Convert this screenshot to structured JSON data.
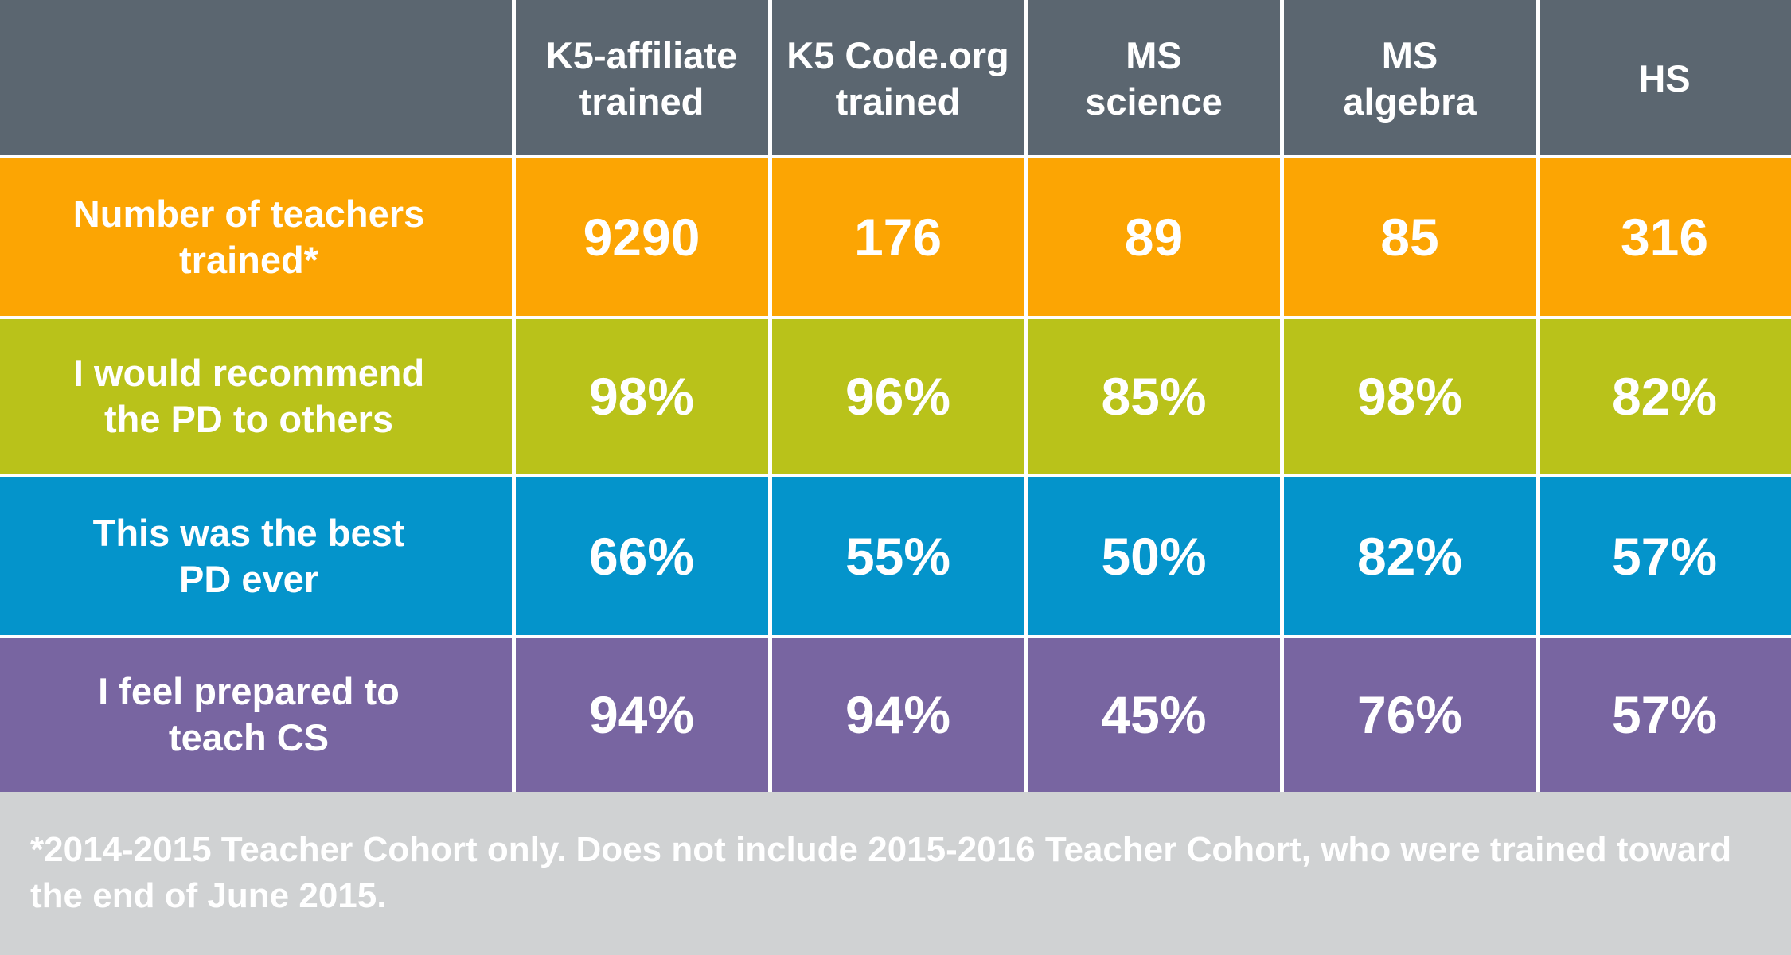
{
  "colors": {
    "header": "#5b6670",
    "rows": [
      "#fca503",
      "#b9c21a",
      "#0494cb",
      "#7865a1"
    ],
    "footnote_bg": "#d0d2d3",
    "text": "#ffffff"
  },
  "chart_data": {
    "type": "table",
    "columns": [
      "",
      "K5-affiliate\ntrained",
      "K5 Code.org\ntrained",
      "MS\nscience",
      "MS\nalgebra",
      "HS"
    ],
    "rows": [
      {
        "label": "Number of teachers\ntrained*",
        "values": [
          "9290",
          "176",
          "89",
          "85",
          "316"
        ]
      },
      {
        "label": "I would recommend\nthe PD to others",
        "values": [
          "98%",
          "96%",
          "85%",
          "98%",
          "82%"
        ]
      },
      {
        "label": "This was the best\nPD ever",
        "values": [
          "66%",
          "55%",
          "50%",
          "82%",
          "57%"
        ]
      },
      {
        "label": "I feel prepared to\nteach CS",
        "values": [
          "94%",
          "94%",
          "45%",
          "76%",
          "57%"
        ]
      }
    ],
    "footnote": "*2014-2015 Teacher Cohort only. Does not include 2015-2016 Teacher Cohort, who were trained toward the end of June 2015."
  }
}
